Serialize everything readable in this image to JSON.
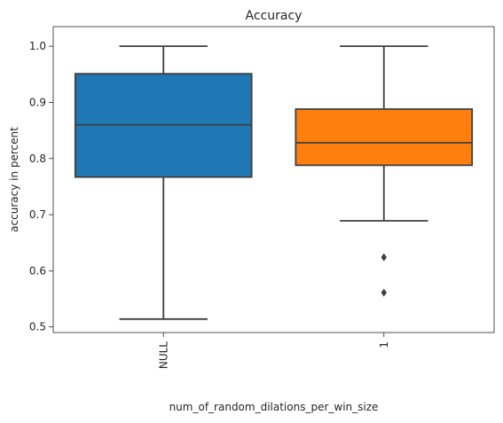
{
  "chart_data": {
    "type": "box",
    "title": "Accuracy",
    "xlabel": "num_of_random_dilations_per_win_size",
    "ylabel": "accuracy in percent",
    "categories": [
      "NULL",
      "1"
    ],
    "ylim": [
      0.49,
      1.035
    ],
    "yticks": [
      "0.5",
      "0.6",
      "0.7",
      "0.8",
      "0.9",
      "1.0"
    ],
    "grid": false,
    "boxes": [
      {
        "name": "NULL",
        "color": "#1f77b4",
        "whisker_low": 0.514,
        "q1": 0.767,
        "median": 0.86,
        "q3": 0.951,
        "whisker_high": 1.0,
        "outliers": []
      },
      {
        "name": "1",
        "color": "#ff7f0e",
        "whisker_low": 0.689,
        "q1": 0.788,
        "median": 0.828,
        "q3": 0.888,
        "whisker_high": 1.0,
        "outliers": [
          0.624,
          0.561
        ]
      }
    ]
  }
}
